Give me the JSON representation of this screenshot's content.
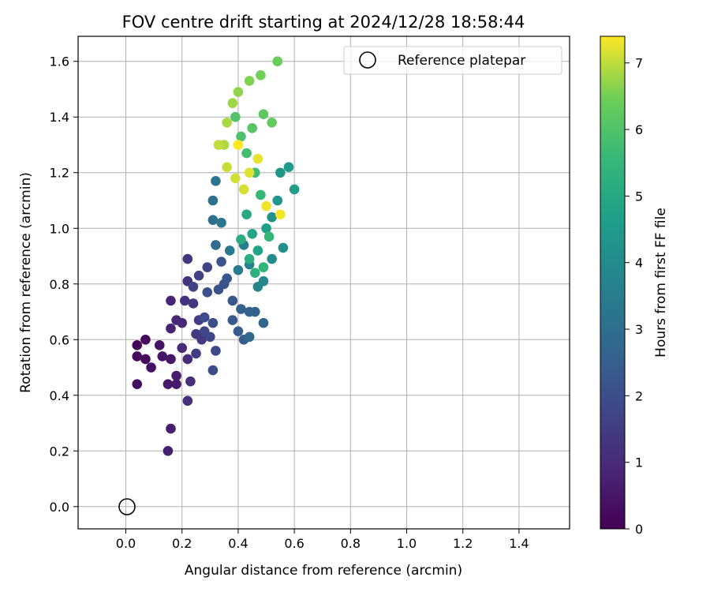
{
  "chart_data": {
    "type": "scatter",
    "title": "FOV centre drift starting at 2024/12/28 18:58:44",
    "xlabel": "Angular distance from reference (arcmin)",
    "ylabel": "Rotation from reference (arcmin)",
    "xlim": [
      -0.17,
      1.58
    ],
    "ylim": [
      -0.08,
      1.69
    ],
    "xticks": [
      0.0,
      0.2,
      0.4,
      0.6,
      0.8,
      1.0,
      1.2,
      1.4
    ],
    "yticks": [
      0.0,
      0.2,
      0.4,
      0.6,
      0.8,
      1.0,
      1.2,
      1.4,
      1.6
    ],
    "xtick_labels": [
      "0.0",
      "0.2",
      "0.4",
      "0.6",
      "0.8",
      "1.0",
      "1.2",
      "1.4"
    ],
    "ytick_labels": [
      "0.0",
      "0.2",
      "0.4",
      "0.6",
      "0.8",
      "1.0",
      "1.2",
      "1.4",
      "1.6"
    ],
    "grid": true,
    "legend": {
      "placement": "top-right",
      "entries": [
        {
          "label": "Reference platepar",
          "marker": "open-circle"
        }
      ]
    },
    "reference_point": {
      "x": 0.0,
      "y": 0.0
    },
    "colorbar": {
      "label": "Hours from first FF file",
      "range": [
        0,
        7.4
      ],
      "ticks": [
        0,
        1,
        2,
        3,
        4,
        5,
        6,
        7
      ],
      "tick_labels": [
        "0",
        "1",
        "2",
        "3",
        "4",
        "5",
        "6",
        "7"
      ],
      "colormap": "viridis"
    },
    "series": [
      {
        "colored_by": "hours",
        "points": [
          [
            0.04,
            0.58,
            0.1
          ],
          [
            0.07,
            0.6,
            0.15
          ],
          [
            0.04,
            0.54,
            0.2
          ],
          [
            0.07,
            0.53,
            0.25
          ],
          [
            0.04,
            0.44,
            0.3
          ],
          [
            0.09,
            0.5,
            0.35
          ],
          [
            0.12,
            0.58,
            0.4
          ],
          [
            0.13,
            0.54,
            0.45
          ],
          [
            0.16,
            0.53,
            0.5
          ],
          [
            0.15,
            0.44,
            0.55
          ],
          [
            0.18,
            0.44,
            0.6
          ],
          [
            0.18,
            0.47,
            0.65
          ],
          [
            0.16,
            0.28,
            0.7
          ],
          [
            0.15,
            0.2,
            0.75
          ],
          [
            0.16,
            0.64,
            0.8
          ],
          [
            0.16,
            0.74,
            0.85
          ],
          [
            0.18,
            0.67,
            0.9
          ],
          [
            0.2,
            0.66,
            0.95
          ],
          [
            0.2,
            0.57,
            1.0
          ],
          [
            0.22,
            0.53,
            1.05
          ],
          [
            0.23,
            0.45,
            1.1
          ],
          [
            0.22,
            0.38,
            1.15
          ],
          [
            0.21,
            0.74,
            1.2
          ],
          [
            0.22,
            0.81,
            1.25
          ],
          [
            0.22,
            0.89,
            1.3
          ],
          [
            0.24,
            0.73,
            1.35
          ],
          [
            0.25,
            0.62,
            1.4
          ],
          [
            0.27,
            0.6,
            1.45
          ],
          [
            0.25,
            0.55,
            1.5
          ],
          [
            0.26,
            0.67,
            1.55
          ],
          [
            0.24,
            0.79,
            1.6
          ],
          [
            0.26,
            0.83,
            1.65
          ],
          [
            0.29,
            0.86,
            1.7
          ],
          [
            0.28,
            0.63,
            1.75
          ],
          [
            0.3,
            0.61,
            1.8
          ],
          [
            0.32,
            0.56,
            1.85
          ],
          [
            0.31,
            0.49,
            1.9
          ],
          [
            0.28,
            0.68,
            1.95
          ],
          [
            0.31,
            0.66,
            2.0
          ],
          [
            0.29,
            0.77,
            2.05
          ],
          [
            0.33,
            0.78,
            2.1
          ],
          [
            0.35,
            0.8,
            2.15
          ],
          [
            0.34,
            0.88,
            2.2
          ],
          [
            0.36,
            0.82,
            2.25
          ],
          [
            0.38,
            0.74,
            2.3
          ],
          [
            0.38,
            0.67,
            2.35
          ],
          [
            0.4,
            0.63,
            2.4
          ],
          [
            0.42,
            0.6,
            2.45
          ],
          [
            0.41,
            0.71,
            2.5
          ],
          [
            0.44,
            0.7,
            2.55
          ],
          [
            0.46,
            0.7,
            2.6
          ],
          [
            0.49,
            0.66,
            2.7
          ],
          [
            0.44,
            0.61,
            2.8
          ],
          [
            0.32,
            0.94,
            2.9
          ],
          [
            0.31,
            1.03,
            3.0
          ],
          [
            0.31,
            1.1,
            3.1
          ],
          [
            0.32,
            1.17,
            3.2
          ],
          [
            0.34,
            1.02,
            3.3
          ],
          [
            0.37,
            0.92,
            3.4
          ],
          [
            0.4,
            0.85,
            3.5
          ],
          [
            0.42,
            0.94,
            3.6
          ],
          [
            0.44,
            0.87,
            3.7
          ],
          [
            0.47,
            0.79,
            3.8
          ],
          [
            0.49,
            0.81,
            3.9
          ],
          [
            0.52,
            0.89,
            4.0
          ],
          [
            0.56,
            0.93,
            4.1
          ],
          [
            0.52,
            1.04,
            4.2
          ],
          [
            0.54,
            1.1,
            4.3
          ],
          [
            0.55,
            1.2,
            4.4
          ],
          [
            0.58,
            1.22,
            4.5
          ],
          [
            0.6,
            1.14,
            4.6
          ],
          [
            0.5,
            1.0,
            4.7
          ],
          [
            0.47,
            0.92,
            4.8
          ],
          [
            0.45,
            0.98,
            4.9
          ],
          [
            0.43,
            1.05,
            5.0
          ],
          [
            0.41,
            0.96,
            5.1
          ],
          [
            0.44,
            0.89,
            5.2
          ],
          [
            0.46,
            0.84,
            5.3
          ],
          [
            0.49,
            0.86,
            5.4
          ],
          [
            0.51,
            0.97,
            5.5
          ],
          [
            0.48,
            1.12,
            5.6
          ],
          [
            0.46,
            1.2,
            5.7
          ],
          [
            0.43,
            1.27,
            5.8
          ],
          [
            0.41,
            1.33,
            5.9
          ],
          [
            0.39,
            1.4,
            6.0
          ],
          [
            0.45,
            1.36,
            6.1
          ],
          [
            0.49,
            1.41,
            6.2
          ],
          [
            0.52,
            1.38,
            6.3
          ],
          [
            0.54,
            1.6,
            6.4
          ],
          [
            0.48,
            1.55,
            6.5
          ],
          [
            0.44,
            1.53,
            6.6
          ],
          [
            0.4,
            1.49,
            6.7
          ],
          [
            0.38,
            1.45,
            6.8
          ],
          [
            0.36,
            1.38,
            6.85
          ],
          [
            0.35,
            1.3,
            6.9
          ],
          [
            0.33,
            1.3,
            7.0
          ],
          [
            0.36,
            1.22,
            7.05
          ],
          [
            0.39,
            1.18,
            7.1
          ],
          [
            0.42,
            1.14,
            7.15
          ],
          [
            0.44,
            1.2,
            7.2
          ],
          [
            0.47,
            1.25,
            7.25
          ],
          [
            0.5,
            1.08,
            7.3
          ],
          [
            0.55,
            1.05,
            7.35
          ],
          [
            0.4,
            1.3,
            7.4
          ]
        ]
      }
    ]
  }
}
